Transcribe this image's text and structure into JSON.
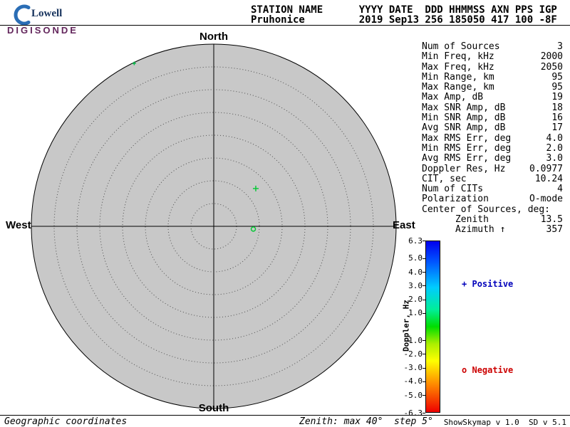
{
  "header": {
    "logo": {
      "name": "Lowell",
      "product": "DIGISONDE",
      "swoosh_color": "#2a6db5",
      "name_color": "#16325c",
      "product_color": "#63265c"
    },
    "labels_line": "STATION NAME      YYYY DATE  DDD HHMMSS AXN PPS IGP",
    "values_line": "Pruhonice         2019 Sep13 256 185050 417 100 -8F",
    "station_name": "Pruhonice",
    "date": "2019 Sep13",
    "ddd": "256",
    "time": "185050",
    "axn": "417",
    "pps": "100",
    "igp": "-8F"
  },
  "stats": {
    "rows": [
      {
        "label": "Num of Sources",
        "value": "3"
      },
      {
        "label": "Min Freq, kHz",
        "value": "2000"
      },
      {
        "label": "Max Freq, kHz",
        "value": "2050"
      },
      {
        "label": "Min Range, km",
        "value": "95"
      },
      {
        "label": "Max Range, km",
        "value": "95"
      },
      {
        "label": "Max Amp, dB",
        "value": "19"
      },
      {
        "label": "Max SNR Amp, dB",
        "value": "18"
      },
      {
        "label": "Min SNR Amp, dB",
        "value": "16"
      },
      {
        "label": "Avg SNR Amp, dB",
        "value": "17"
      },
      {
        "label": "Max RMS Err, deg",
        "value": "4.0"
      },
      {
        "label": "Min RMS Err, deg",
        "value": "2.0"
      },
      {
        "label": "Avg RMS Err, deg",
        "value": "3.0"
      },
      {
        "label": "Doppler Res, Hz",
        "value": "0.0977"
      },
      {
        "label": "CIT, sec",
        "value": "10.24"
      },
      {
        "label": "Num of CITs",
        "value": "4"
      },
      {
        "label": "Polarization",
        "value": "O-mode"
      },
      {
        "label": "Center of Sources, deg:",
        "value": ""
      },
      {
        "label": "      Zenith",
        "value": "13.5"
      },
      {
        "label": "      Azimuth ↑",
        "value": "357"
      }
    ]
  },
  "chart_data": {
    "type": "scatter",
    "projection": "polar-skymap",
    "coordinate_note": "Geographic coordinates, zenith max 40 deg, step 5 deg",
    "compass": {
      "north": "North",
      "south": "South",
      "west": "West",
      "east": "East"
    },
    "zenith_max_deg": 40,
    "zenith_step_deg": 5,
    "rings": 8,
    "disk_color": "#c8c8c8",
    "ring_color": "#505050",
    "sources": [
      {
        "zenith_deg": 39.8,
        "azimuth_deg": 334,
        "marker": "plus",
        "color": "#00b844",
        "size": 2.5
      },
      {
        "zenith_deg": 12.4,
        "azimuth_deg": 48,
        "marker": "plus",
        "color": "#00c832",
        "size": 4
      },
      {
        "zenith_deg": 8.7,
        "azimuth_deg": 94,
        "marker": "circle",
        "color": "#00c832",
        "size": 3
      }
    ],
    "colorbar": {
      "title": "Doppler, Hz",
      "min": -6.3,
      "max": 6.3,
      "ticks": [
        6.3,
        5.0,
        4.0,
        3.0,
        2.0,
        1.0,
        -1.0,
        -2.0,
        -3.0,
        -4.0,
        -5.0,
        -6.3
      ],
      "gradient": [
        {
          "stop": 0.0,
          "color": "#0000ee"
        },
        {
          "stop": 0.12,
          "color": "#0055ff"
        },
        {
          "stop": 0.27,
          "color": "#00ccff"
        },
        {
          "stop": 0.4,
          "color": "#00ee99"
        },
        {
          "stop": 0.5,
          "color": "#00dd00"
        },
        {
          "stop": 0.6,
          "color": "#aaee00"
        },
        {
          "stop": 0.7,
          "color": "#ffff00"
        },
        {
          "stop": 0.84,
          "color": "#ff8800"
        },
        {
          "stop": 1.0,
          "color": "#ee0000"
        }
      ],
      "legend": [
        {
          "marker": "+",
          "label": "Positive",
          "color": "#0000bb"
        },
        {
          "marker": "o",
          "label": "Negative",
          "color": "#cc0000"
        }
      ]
    }
  },
  "footer": {
    "left": "Geographic coordinates",
    "center": "Zenith: max 40°  step 5°",
    "right": "ShowSkymap v 1.0  SD v 5.1"
  }
}
